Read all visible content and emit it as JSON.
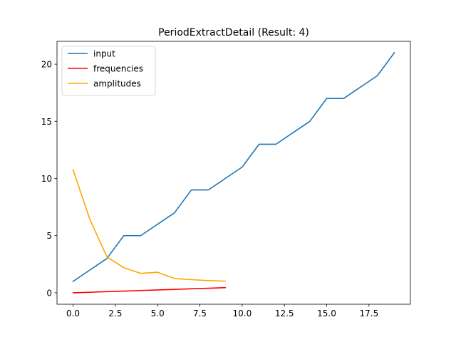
{
  "chart_data": {
    "type": "line",
    "title": "PeriodExtractDetail (Result: 4)",
    "xlabel": "",
    "ylabel": "",
    "xlim": [
      -0.95,
      19.95
    ],
    "ylim": [
      -1.0,
      22.0
    ],
    "x_ticks": [
      0,
      2.5,
      5,
      7.5,
      10,
      12.5,
      15,
      17.5
    ],
    "x_tick_labels": [
      "0.0",
      "2.5",
      "5.0",
      "7.5",
      "10.0",
      "12.5",
      "15.0",
      "17.5"
    ],
    "y_ticks": [
      0,
      5,
      10,
      15,
      20
    ],
    "y_tick_labels": [
      "0",
      "5",
      "10",
      "15",
      "20"
    ],
    "grid": false,
    "legend_position": "top-left",
    "series": [
      {
        "name": "input",
        "color": "#1f77b4",
        "x": [
          0,
          1,
          2,
          3,
          4,
          5,
          6,
          7,
          8,
          9,
          10,
          11,
          12,
          13,
          14,
          15,
          16,
          17,
          18,
          19
        ],
        "values": [
          1,
          2,
          3,
          5,
          5,
          6,
          7,
          9,
          9,
          10,
          11,
          13,
          13,
          14,
          15,
          17,
          17,
          18,
          19,
          21
        ]
      },
      {
        "name": "frequencies",
        "color": "#ff0000",
        "x": [
          0,
          1,
          2,
          3,
          4,
          5,
          6,
          7,
          8,
          9
        ],
        "values": [
          0.0,
          0.05,
          0.1,
          0.15,
          0.2,
          0.25,
          0.3,
          0.35,
          0.4,
          0.45
        ]
      },
      {
        "name": "amplitudes",
        "color": "#ffa500",
        "x": [
          0,
          1,
          2,
          3,
          4,
          5,
          6,
          7,
          8,
          9
        ],
        "values": [
          10.75,
          6.4,
          3.15,
          2.2,
          1.7,
          1.8,
          1.25,
          1.15,
          1.07,
          1.02
        ]
      }
    ]
  }
}
